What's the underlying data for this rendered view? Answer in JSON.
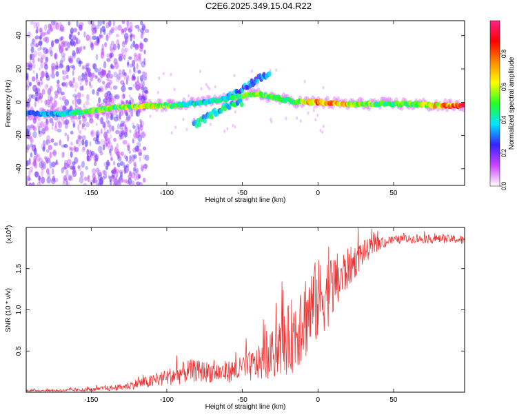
{
  "title": "C2E6.2025.349.15.04.R22",
  "chart_data": [
    {
      "type": "heatmap",
      "xlabel": "Height of straight line (km)",
      "ylabel": "Frequency (Hz)",
      "xlim": [
        -193,
        97
      ],
      "ylim": [
        -50,
        49
      ],
      "xticks": [
        -150,
        -100,
        -50,
        0,
        50
      ],
      "xtick_labels": [
        "-150",
        "-100",
        "-50",
        "0",
        "50"
      ],
      "yticks": [
        -40,
        -20,
        0,
        20,
        40
      ],
      "ytick_labels": [
        "-40",
        "-20",
        "0",
        "20",
        "40"
      ],
      "colorbar": {
        "label": "Normalized spectral amplitude",
        "range": [
          0.0,
          1.0
        ],
        "ticks": [
          0.0,
          0.2,
          0.4,
          0.6,
          0.8
        ],
        "tick_labels": [
          "0.0",
          "0.2",
          "0.4",
          "0.6",
          "0.8"
        ],
        "colors": [
          "#ffffff",
          "#cc44ff",
          "#3322ff",
          "#00e5ff",
          "#22ff22",
          "#ffff00",
          "#ff8800",
          "#ff0000",
          "#ff2288"
        ]
      },
      "ridge": {
        "x": [
          -193,
          -170,
          -150,
          -130,
          -110,
          -95,
          -85,
          -75,
          -60,
          -50,
          -40,
          -30,
          -20,
          -10,
          0,
          20,
          40,
          60,
          80,
          97
        ],
        "freq": [
          -7,
          -7,
          -5,
          -3,
          -2,
          -2,
          -1,
          0,
          2,
          4,
          5,
          3,
          1,
          0,
          0,
          -1,
          -1,
          -1,
          -2,
          -2
        ],
        "amplitude": [
          0.3,
          0.4,
          0.5,
          0.55,
          0.6,
          0.5,
          0.45,
          0.4,
          0.45,
          0.5,
          0.55,
          0.5,
          0.45,
          0.6,
          0.8,
          0.7,
          0.5,
          0.55,
          0.7,
          0.9
        ]
      },
      "branch_down": {
        "x": [
          -82,
          -75,
          -68,
          -60,
          -50
        ],
        "freq": [
          -14,
          -10,
          -6,
          -2,
          0
        ],
        "amplitude": 0.4
      },
      "branch_up": {
        "x": [
          -60,
          -52,
          -45,
          -38,
          -32
        ],
        "freq": [
          3,
          7,
          11,
          15,
          18
        ],
        "amplitude": 0.3
      }
    },
    {
      "type": "line",
      "xlabel": "Height of straight line (km)",
      "ylabel": "SNR (10 * v/v)",
      "y_multiplier": "(x10",
      "y_multiplier_exp": "4",
      "y_multiplier_close": ")",
      "xlim": [
        -193,
        97
      ],
      "ylim": [
        0,
        2.0
      ],
      "xticks": [
        -150,
        -100,
        -50,
        0,
        50
      ],
      "xtick_labels": [
        "-150",
        "-100",
        "-50",
        "0",
        "50"
      ],
      "yticks": [
        0.5,
        1.0,
        1.5
      ],
      "ytick_labels": [
        "0.5",
        "1.0",
        "1.5"
      ],
      "color": "#ee3333",
      "series": [
        {
          "name": "SNR",
          "envelope_x": [
            -193,
            -170,
            -150,
            -130,
            -120,
            -110,
            -100,
            -92,
            -85,
            -75,
            -65,
            -55,
            -45,
            -38,
            -30,
            -25,
            -20,
            -15,
            -10,
            -5,
            0,
            5,
            10,
            20,
            30,
            40,
            50,
            60,
            70,
            80,
            90,
            97
          ],
          "envelope_y": [
            0.02,
            0.02,
            0.03,
            0.06,
            0.1,
            0.13,
            0.18,
            0.22,
            0.26,
            0.25,
            0.24,
            0.26,
            0.3,
            0.36,
            0.45,
            0.55,
            0.62,
            0.75,
            0.9,
            1.0,
            1.12,
            1.2,
            1.28,
            1.5,
            1.7,
            1.8,
            1.85,
            1.86,
            1.86,
            1.86,
            1.86,
            1.84
          ],
          "noise_amplitude": [
            0.01,
            0.015,
            0.02,
            0.04,
            0.06,
            0.08,
            0.1,
            0.13,
            0.14,
            0.13,
            0.13,
            0.14,
            0.18,
            0.22,
            0.3,
            0.35,
            0.42,
            0.5,
            0.55,
            0.55,
            0.5,
            0.45,
            0.4,
            0.25,
            0.15,
            0.08,
            0.05,
            0.05,
            0.05,
            0.05,
            0.05,
            0.06
          ]
        }
      ]
    }
  ]
}
